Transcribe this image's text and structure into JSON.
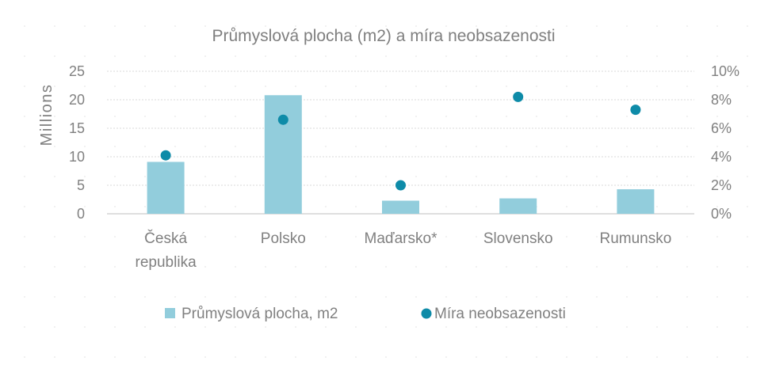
{
  "chart_data": {
    "type": "bar",
    "title": "Průmyslová plocha (m2) a míra neobsazenosti",
    "ylabel": "Millions",
    "categories": [
      [
        "Česká",
        "republika"
      ],
      [
        "Polsko"
      ],
      [
        "Maďarsko*"
      ],
      [
        "Slovensko"
      ],
      [
        "Rumunsko"
      ]
    ],
    "ylim": [
      0,
      25
    ],
    "y_ticks": [
      "0",
      "5",
      "10",
      "15",
      "20",
      "25"
    ],
    "y2lim": [
      0,
      0.1
    ],
    "y2_ticks": [
      "0%",
      "2%",
      "4%",
      "6%",
      "8%",
      "10%"
    ],
    "grid": true,
    "legend_position": "bottom",
    "series": [
      {
        "name": "Průmyslová plocha, m2",
        "type": "bar",
        "axis": "left",
        "values": [
          9.1,
          20.8,
          2.3,
          2.7,
          4.3
        ],
        "color": "#92CDDC"
      },
      {
        "name": "Míra neobsazenosti",
        "type": "scatter",
        "axis": "right",
        "values": [
          0.041,
          0.066,
          0.02,
          0.082,
          0.073
        ],
        "color": "#0E8BA8"
      }
    ]
  }
}
